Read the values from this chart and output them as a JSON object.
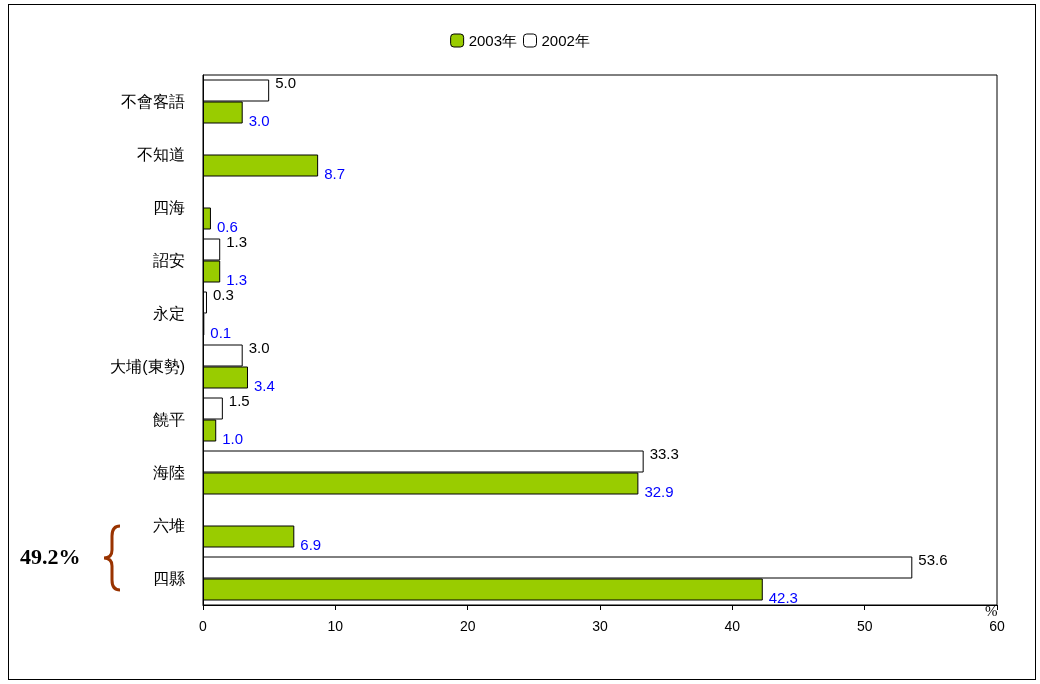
{
  "chart_data": {
    "type": "bar",
    "orientation": "horizontal",
    "categories": [
      "不會客語",
      "不知道",
      "四海",
      "詔安",
      "永定",
      "大埔(東勢)",
      "饒平",
      "海陸",
      "六堆",
      "四縣"
    ],
    "series": [
      {
        "name": "2003年",
        "color": "#99cc00",
        "values": [
          3.0,
          8.7,
          0.6,
          1.3,
          0.1,
          3.4,
          1.0,
          32.9,
          6.9,
          42.3
        ],
        "value_labels": [
          "3.0",
          "8.7",
          "0.6",
          "1.3",
          "0.1",
          "3.4",
          "1.0",
          "32.9",
          "6.9",
          "42.3"
        ]
      },
      {
        "name": "2002年",
        "color": "#ffffff",
        "values": [
          5.0,
          null,
          null,
          1.3,
          0.3,
          3.0,
          1.5,
          33.3,
          null,
          53.6
        ],
        "value_labels": [
          "5.0",
          null,
          null,
          "1.3",
          "0.3",
          "3.0",
          "1.5",
          "33.3",
          null,
          "53.6"
        ]
      }
    ],
    "xlim": [
      0,
      60
    ],
    "xticks": [
      0,
      10,
      20,
      30,
      40,
      50,
      60
    ],
    "xlabel": "%",
    "grid": false,
    "legend": "top",
    "annotations": [
      "49.2%"
    ]
  }
}
